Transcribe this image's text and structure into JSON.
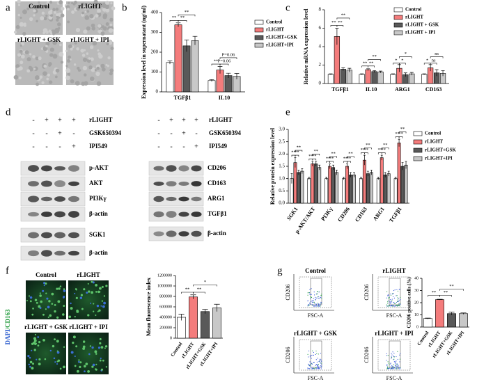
{
  "panel_labels": [
    "a",
    "b",
    "c",
    "d",
    "e",
    "f",
    "g"
  ],
  "panel_a": {
    "images": [
      "Control",
      "rLIGHT",
      "rLIGHT + GSK",
      "rLIGHT + IPI"
    ]
  },
  "panel_d": {
    "treatments": [
      {
        "name": "rLIGHT",
        "signs": [
          "-",
          "+",
          "+",
          "+"
        ]
      },
      {
        "name": "GSK650394",
        "signs": [
          "-",
          "-",
          "+",
          "-"
        ]
      },
      {
        "name": "IPI549",
        "signs": [
          "-",
          "-",
          "-",
          "+"
        ]
      }
    ],
    "left_bands": [
      "p-AKT",
      "AKT",
      "PI3Kγ",
      "β-actin",
      "SGK1",
      "β-actin"
    ],
    "right_bands": [
      "CD206",
      "CD163",
      "ARG1",
      "TGFβ1",
      "β-actin"
    ]
  },
  "panel_f": {
    "channel_label": [
      "DAPI",
      "/CD163"
    ],
    "images": [
      "Control",
      "rLIGHT",
      "rLIGHT + GSK",
      "rLIGHT + IPI"
    ]
  },
  "panel_g": {
    "plots": [
      "Control",
      "rLIGHT",
      "rLIGHT + GSK",
      "rLIGHT + IPI"
    ],
    "x_axis": "FSC-A",
    "y_axis": "CD206"
  },
  "chart_data": [
    {
      "type": "bar",
      "y_label": "Expression level in supernatant (ng/ml)",
      "categories": [
        "TGFβ1",
        "IL10"
      ],
      "series": [
        {
          "name": "Control",
          "color": "#ffffff",
          "values": [
            148,
            57
          ],
          "errors": [
            8,
            5
          ]
        },
        {
          "name": "rLIGHT",
          "color": "#f47c7c",
          "values": [
            338,
            110
          ],
          "errors": [
            10,
            18
          ]
        },
        {
          "name": "rLIGHT+GSK",
          "color": "#595959",
          "values": [
            232,
            82
          ],
          "errors": [
            30,
            12
          ]
        },
        {
          "name": "rLIGHT+IPI",
          "color": "#c8c8c8",
          "values": [
            258,
            78
          ],
          "errors": [
            22,
            15
          ]
        }
      ],
      "ylim": [
        0,
        400
      ],
      "yticks": [
        0,
        100,
        200,
        300,
        400
      ],
      "annotations": [
        "**",
        "**",
        "**",
        "**",
        "P=0.06",
        "P=0.06"
      ]
    },
    {
      "type": "bar",
      "y_label": "Relative mRNA expression level",
      "categories": [
        "TGFβ1",
        "IL10",
        "ARG1",
        "CD163"
      ],
      "series": [
        {
          "name": "Control",
          "color": "#ffffff",
          "values": [
            1,
            1,
            1,
            1
          ],
          "errors": [
            0.05,
            0.05,
            0.05,
            0.05
          ]
        },
        {
          "name": "rLIGHT",
          "color": "#f47c7c",
          "values": [
            5.1,
            1.5,
            1.65,
            1.7
          ],
          "errors": [
            0.9,
            0.1,
            0.4,
            0.35
          ]
        },
        {
          "name": "rLIGHT + GSK",
          "color": "#595959",
          "values": [
            1.55,
            1.3,
            0.95,
            1.15
          ],
          "errors": [
            0.15,
            0.1,
            0.2,
            0.35
          ]
        },
        {
          "name": "rLIGHT + IPI",
          "color": "#c8c8c8",
          "values": [
            1.45,
            1.25,
            1.05,
            1.1
          ],
          "errors": [
            0.2,
            0.1,
            0.15,
            0.3
          ]
        }
      ],
      "ylim": [
        0,
        8
      ],
      "yticks": [
        0,
        2,
        4,
        6,
        8
      ],
      "annotations": [
        "**",
        "**",
        "**",
        "**",
        "**",
        "**",
        "*",
        "*",
        "*",
        "*",
        "ns",
        "ns"
      ]
    },
    {
      "type": "bar",
      "y_label": "Relative protein expression level",
      "categories": [
        "SGK1",
        "p-AKT/AKT",
        "PI3Kγ",
        "CD206",
        "CD163",
        "ARG1",
        "TGFβ1"
      ],
      "series": [
        {
          "name": "Control",
          "color": "#ffffff",
          "values": [
            1,
            1,
            1,
            1,
            1,
            1,
            1
          ],
          "errors": [
            0.2,
            0.05,
            0.05,
            0.05,
            0.05,
            0.05,
            0.05
          ]
        },
        {
          "name": "rLIGHT",
          "color": "#f47c7c",
          "values": [
            1.65,
            1.6,
            1.5,
            1.5,
            1.75,
            1.85,
            2.45
          ],
          "errors": [
            0.2,
            0.1,
            0.1,
            0.1,
            0.2,
            0.1,
            0.15
          ]
        },
        {
          "name": "rLIGHT+GSK",
          "color": "#595959",
          "values": [
            1.25,
            1.6,
            1.45,
            1.15,
            1.2,
            1.15,
            1.5
          ],
          "errors": [
            0.1,
            0.1,
            0.1,
            0.1,
            0.1,
            0.1,
            0.15
          ]
        },
        {
          "name": "rLIGHT+IPI",
          "color": "#c8c8c8",
          "values": [
            1.3,
            1.45,
            1.25,
            1.15,
            1.25,
            1.2,
            1.55
          ],
          "errors": [
            0.1,
            0.1,
            0.1,
            0.1,
            0.1,
            0.1,
            0.15
          ]
        }
      ],
      "ylim": [
        0,
        3
      ],
      "yticks": [
        {
          "value": 0,
          "label": "0.0"
        },
        {
          "value": 0.5,
          "label": "0.5"
        },
        {
          "value": 1,
          "label": "1.0"
        },
        {
          "value": 1.5,
          "label": "1.5"
        },
        {
          "value": 2,
          "label": "2.0"
        },
        {
          "value": 2.5,
          "label": "2.5"
        },
        {
          "value": 3,
          "label": "3.0"
        }
      ],
      "annotations": [
        "**",
        "**",
        "**",
        "**",
        "**",
        "**",
        "**",
        "**",
        "**",
        "**",
        "**",
        "**",
        "**",
        "**",
        "**",
        "**",
        "**",
        "**",
        "**",
        "**",
        "**"
      ]
    },
    {
      "type": "bar",
      "y_label": "Mean fluorescence index",
      "categories": [
        "Control",
        "rLIGHT",
        "rLIGHT+GSK",
        "rLIGHT+IPI"
      ],
      "values": [
        400000,
        790000,
        510000,
        580000
      ],
      "errors": [
        60000,
        40000,
        40000,
        70000
      ],
      "colors": [
        "#ffffff",
        "#f47c7c",
        "#595959",
        "#c8c8c8"
      ],
      "ylim": [
        0,
        1200000
      ],
      "yticks": [
        0,
        200000,
        400000,
        600000,
        800000,
        1000000,
        1200000
      ],
      "annotations": [
        "**",
        "**",
        "*"
      ]
    },
    {
      "type": "bar",
      "y_label": "CD206 positive cells (%)",
      "categories": [
        "Control",
        "rLIGHT",
        "rLIGHT+GSK",
        "rLIGHT+IPI"
      ],
      "values": [
        7,
        22.5,
        11,
        11
      ],
      "errors": [
        0.4,
        0.3,
        1.2,
        0.6
      ],
      "colors": [
        "#ffffff",
        "#f47c7c",
        "#595959",
        "#c8c8c8"
      ],
      "ylim": [
        0,
        40
      ],
      "yticks": [
        0,
        10,
        20,
        30,
        40
      ],
      "annotations": [
        "**",
        "**",
        "**"
      ]
    }
  ]
}
